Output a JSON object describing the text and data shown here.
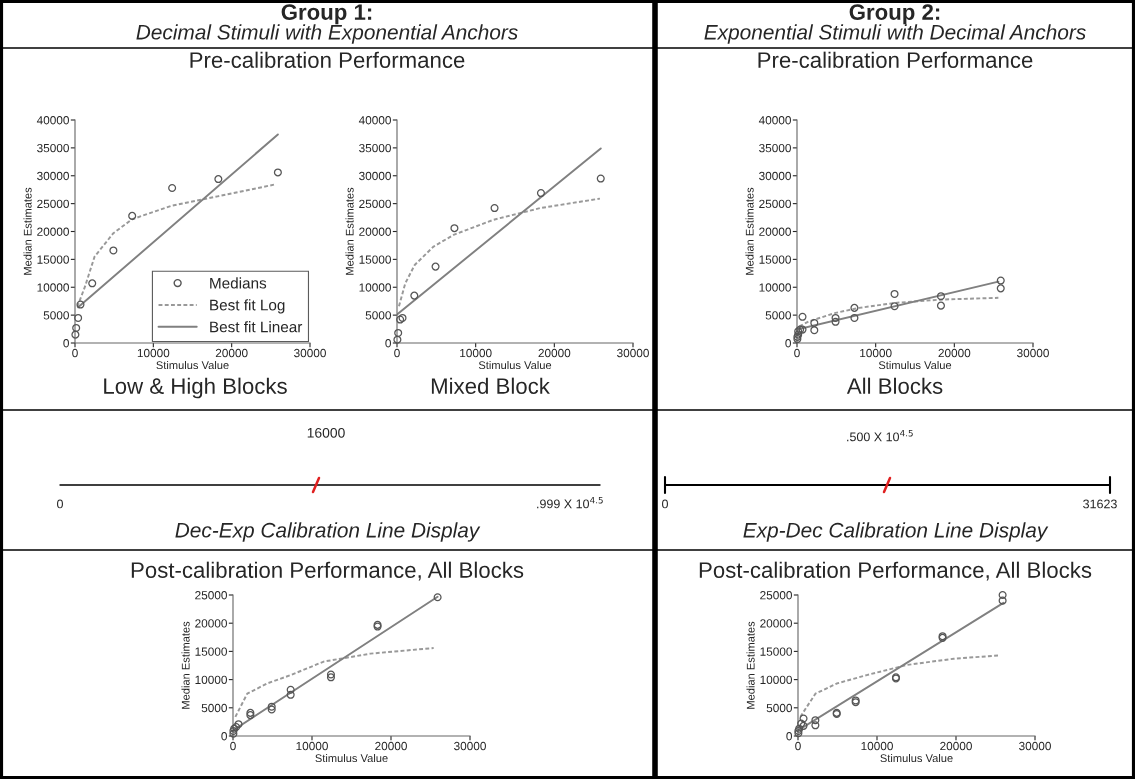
{
  "chart_data": [
    {
      "type": "other",
      "title": "Group 1:",
      "subtitle": "Decimal Stimuli with Exponential Anchors"
    },
    {
      "type": "other",
      "title": "Group 2:",
      "subtitle": "Exponential Stimuli with Decimal Anchors"
    },
    {
      "type": "scatter",
      "title": "Pre-calibration Performance",
      "annotations": [
        "Low & High Blocks"
      ],
      "xlabel": "Stimulus Value",
      "ylabel": "Median Estimates",
      "xlim": [
        0,
        30000
      ],
      "xticks": [
        0,
        10000,
        20000,
        30000
      ],
      "ylim": [
        0,
        40000
      ],
      "yticks": [
        0,
        5000,
        10000,
        15000,
        20000,
        25000,
        30000,
        35000,
        40000
      ],
      "grid": false,
      "legend": "bottom right",
      "series": [
        {
          "type": "scatter",
          "name": "Medians",
          "color": "#555555",
          "marker": "circle",
          "x": [
            50,
            150,
            400,
            700,
            2200,
            4900,
            7300,
            12400,
            18300,
            25900
          ],
          "values": [
            1500,
            2700,
            4500,
            6900,
            10700,
            16600,
            22800,
            27800,
            29400,
            30600
          ]
        },
        {
          "type": "line",
          "name": "Best fit Log",
          "color": "#999999",
          "line_style": "dotted",
          "x": [
            300,
            1270,
            2500,
            4900,
            7300,
            12300,
            18200,
            25400
          ],
          "values": [
            6500,
            10100,
            15500,
            19700,
            22200,
            24600,
            26300,
            28400
          ]
        },
        {
          "type": "line",
          "name": "Best fit Linear",
          "color": "#808080",
          "line_style": "solid",
          "x": [
            400,
            25900
          ],
          "values": [
            6400,
            37400
          ]
        }
      ]
    },
    {
      "type": "scatter",
      "annotations": [
        "Mixed Block"
      ],
      "xlabel": "Stimulus Value",
      "ylabel": "Median Estimates",
      "xlim": [
        0,
        30000
      ],
      "xticks": [
        0,
        10000,
        20000,
        30000
      ],
      "ylim": [
        0,
        40000
      ],
      "yticks": [
        0,
        5000,
        10000,
        15000,
        20000,
        25000,
        30000,
        35000,
        40000
      ],
      "grid": false,
      "series": [
        {
          "type": "scatter",
          "color": "#555555",
          "marker": "circle",
          "x": [
            50,
            150,
            400,
            700,
            2200,
            4900,
            7300,
            12400,
            18300,
            25900
          ],
          "values": [
            600,
            1800,
            4200,
            4500,
            8500,
            13700,
            20600,
            24200,
            26900,
            29500
          ]
        },
        {
          "type": "line",
          "color": "#999999",
          "line_style": "dotted",
          "x": [
            250,
            1050,
            2250,
            4650,
            7200,
            12250,
            18200,
            25800
          ],
          "values": [
            6600,
            10700,
            14000,
            17300,
            19400,
            22100,
            24200,
            25900
          ]
        },
        {
          "type": "line",
          "color": "#808080",
          "line_style": "solid",
          "x": [
            0,
            25900
          ],
          "values": [
            5100,
            34900
          ]
        }
      ]
    },
    {
      "type": "scatter",
      "title": "Pre-calibration Performance",
      "annotations": [
        "All Blocks"
      ],
      "xlabel": "Stimulus Value",
      "ylabel": "Median Estimates",
      "xlim": [
        0,
        30000
      ],
      "xticks": [
        0,
        10000,
        20000,
        30000
      ],
      "ylim": [
        0,
        40000
      ],
      "yticks": [
        0,
        5000,
        10000,
        15000,
        20000,
        25000,
        30000,
        35000,
        40000
      ],
      "grid": false,
      "series": [
        {
          "type": "scatter",
          "color": "#555555",
          "marker": "circle",
          "x": [
            50,
            50,
            150,
            150,
            400,
            700,
            700,
            2200,
            2200,
            4900,
            4900,
            7300,
            7300,
            12400,
            12400,
            18300,
            18300,
            25900,
            25900
          ],
          "values": [
            700,
            1100,
            1500,
            2100,
            2400,
            4700,
            2400,
            3600,
            2300,
            4500,
            3800,
            6300,
            4500,
            8800,
            6600,
            8400,
            6700,
            11200,
            9800
          ]
        },
        {
          "type": "line",
          "color": "#999999",
          "line_style": "dotted",
          "x": [
            300,
            1550,
            4900,
            7900,
            12500,
            18400,
            25600
          ],
          "values": [
            3000,
            3900,
            5400,
            6300,
            7200,
            7800,
            8100
          ]
        },
        {
          "type": "line",
          "color": "#808080",
          "line_style": "solid",
          "x": [
            0,
            25600
          ],
          "values": [
            2400,
            11000
          ]
        }
      ]
    },
    {
      "type": "other",
      "annotations": [
        "16000",
        "0",
        ".999 X 10$^{4.5}$",
        "Dec-Exp Calibration Line Display"
      ]
    },
    {
      "type": "other",
      "annotations": [
        ".500 X 10$^{4.5}$",
        "0",
        "31623",
        "Exp-Dec Calibration Line Display"
      ]
    },
    {
      "type": "scatter",
      "title": "Post-calibration Performance, All Blocks",
      "xlabel": "Stimulus Value",
      "ylabel": "Median Estimates",
      "xlim": [
        0,
        30000
      ],
      "xticks": [
        0,
        10000,
        20000,
        30000
      ],
      "ylim": [
        0,
        25000
      ],
      "yticks": [
        0,
        5000,
        10000,
        15000,
        20000,
        25000
      ],
      "grid": false,
      "series": [
        {
          "type": "scatter",
          "color": "#555555",
          "marker": "circle",
          "x": [
            50,
            50,
            150,
            400,
            700,
            2200,
            2200,
            4900,
            4900,
            7300,
            7300,
            12400,
            12400,
            18300,
            18300,
            25900
          ],
          "values": [
            400,
            900,
            1300,
            1600,
            2100,
            3700,
            4100,
            4700,
            5200,
            7300,
            8200,
            10400,
            10900,
            19400,
            19700,
            24600
          ]
        },
        {
          "type": "line",
          "color": "#999999",
          "line_style": "dotted",
          "x": [
            300,
            1800,
            4300,
            7300,
            11500,
            17400,
            25400
          ],
          "values": [
            3400,
            7500,
            9300,
            10800,
            13200,
            14600,
            15600
          ]
        },
        {
          "type": "line",
          "color": "#808080",
          "line_style": "solid",
          "x": [
            0,
            25900
          ],
          "values": [
            1000,
            24700
          ]
        }
      ]
    },
    {
      "type": "scatter",
      "title": "Post-calibration Performance, All Blocks",
      "xlabel": "Stimulus Value",
      "ylabel": "Median Estimates",
      "xlim": [
        0,
        30000
      ],
      "xticks": [
        0,
        10000,
        20000,
        30000
      ],
      "ylim": [
        0,
        25000
      ],
      "yticks": [
        0,
        5000,
        10000,
        15000,
        20000,
        25000
      ],
      "grid": false,
      "series": [
        {
          "type": "scatter",
          "color": "#555555",
          "marker": "circle",
          "x": [
            50,
            50,
            150,
            400,
            700,
            700,
            2200,
            2200,
            4900,
            4900,
            7300,
            7300,
            12400,
            12400,
            18300,
            18300,
            25900,
            25900
          ],
          "values": [
            500,
            900,
            1300,
            2200,
            3100,
            1800,
            2800,
            1900,
            4100,
            3900,
            6000,
            6300,
            10200,
            10400,
            17700,
            17400,
            25000,
            24000
          ]
        },
        {
          "type": "line",
          "color": "#999999",
          "line_style": "dotted",
          "x": [
            300,
            2200,
            4900,
            8700,
            13800,
            19700,
            25600
          ],
          "values": [
            3400,
            7500,
            9300,
            10800,
            12600,
            13700,
            14300
          ]
        },
        {
          "type": "line",
          "color": "#808080",
          "line_style": "solid",
          "x": [
            0,
            26000
          ],
          "values": [
            1000,
            23600
          ]
        }
      ]
    }
  ]
}
